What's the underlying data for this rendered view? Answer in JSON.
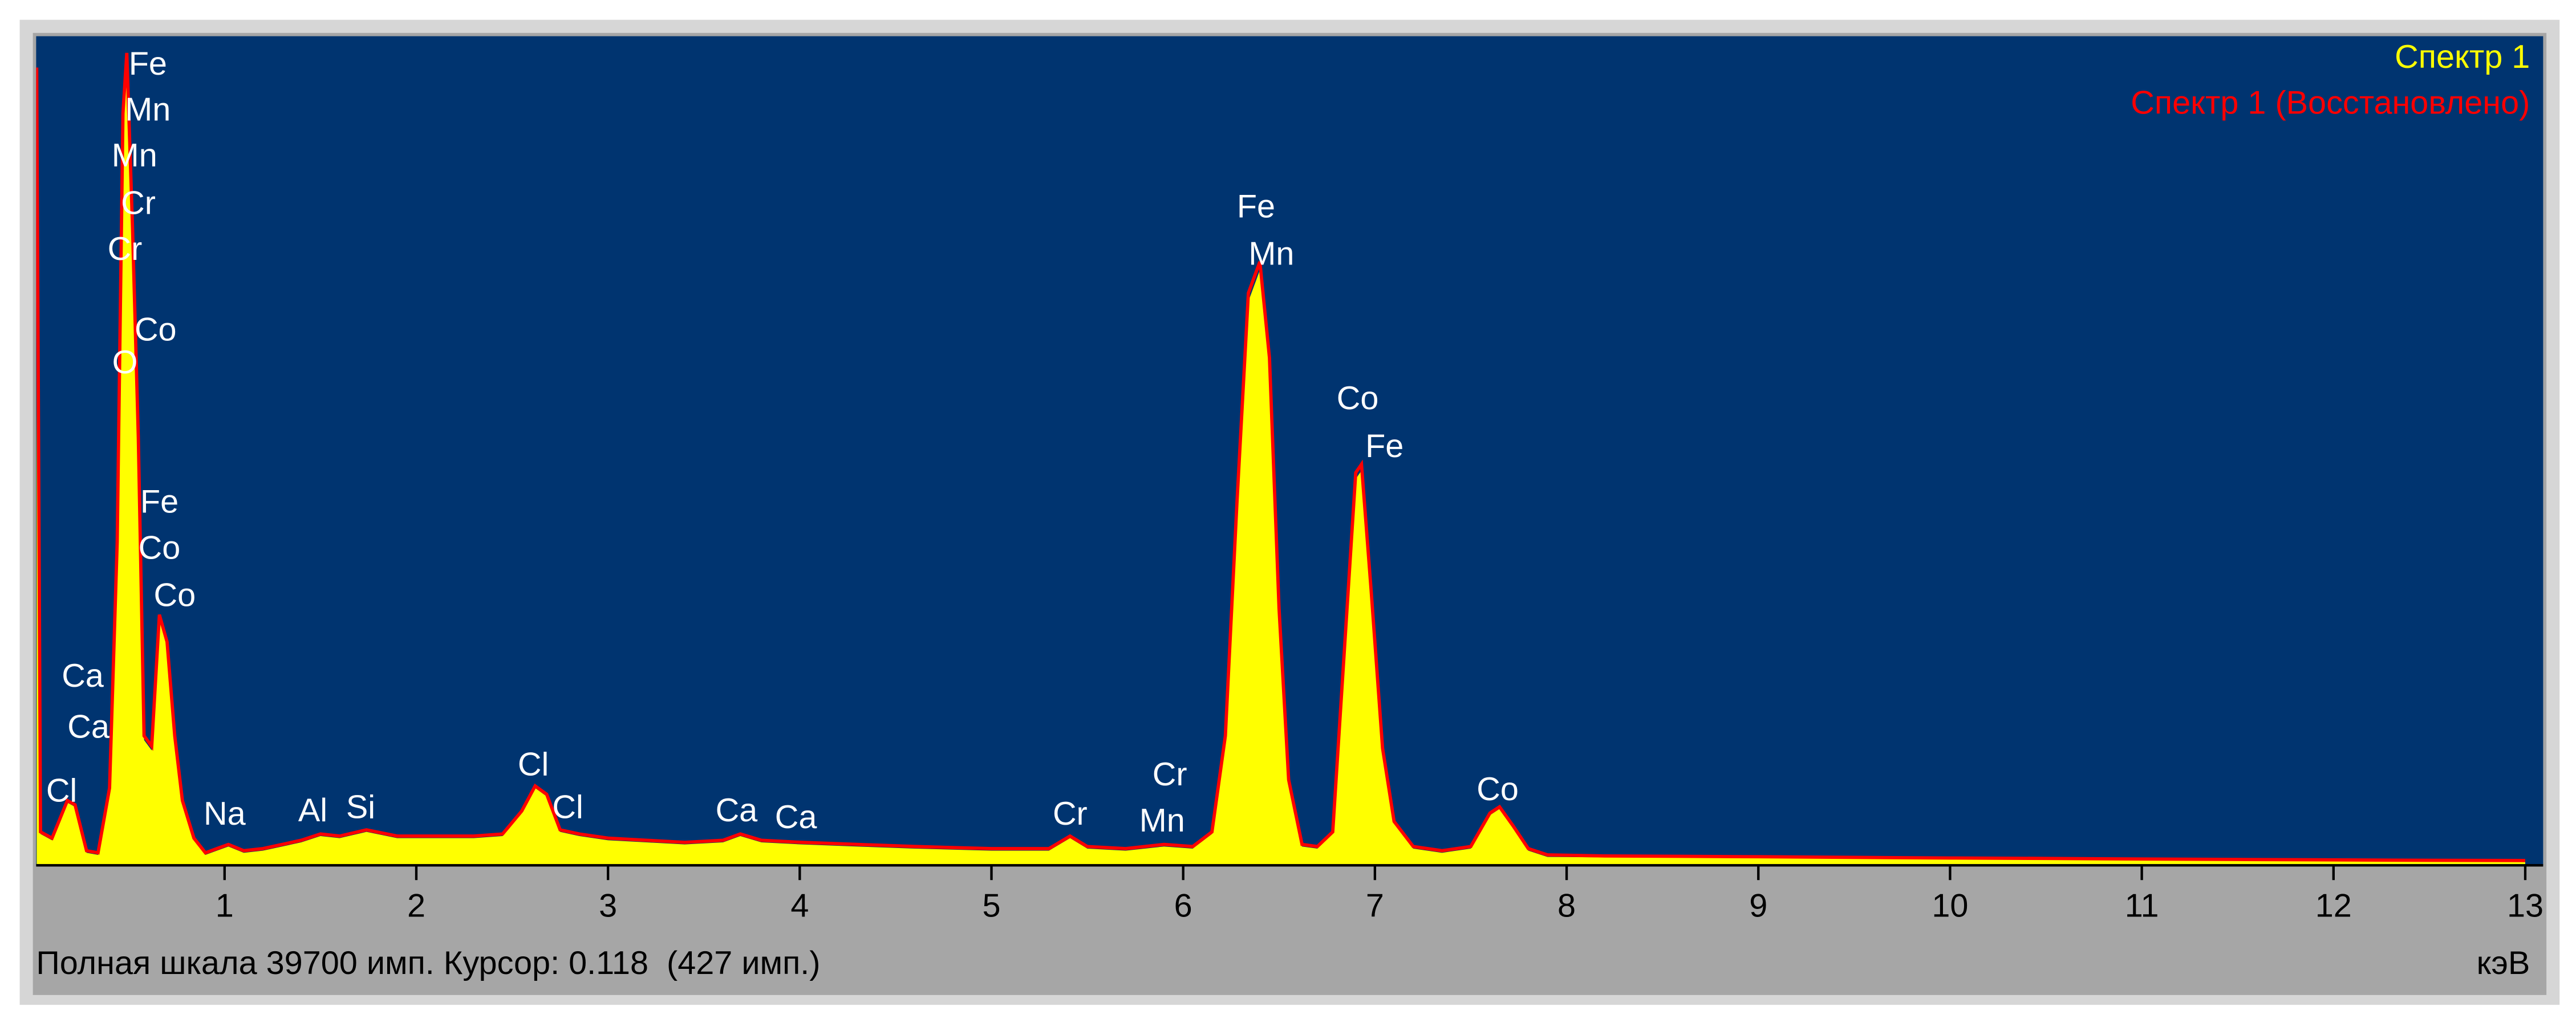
{
  "chart_data": {
    "type": "area",
    "x": [
      0.02,
      0.04,
      0.1,
      0.18,
      0.22,
      0.28,
      0.34,
      0.4,
      0.44,
      0.47,
      0.49,
      0.52,
      0.55,
      0.58,
      0.62,
      0.66,
      0.7,
      0.74,
      0.78,
      0.84,
      0.9,
      0.96,
      1.02,
      1.1,
      1.2,
      1.3,
      1.4,
      1.5,
      1.6,
      1.74,
      1.9,
      2.1,
      2.3,
      2.45,
      2.55,
      2.62,
      2.68,
      2.75,
      2.85,
      3.0,
      3.2,
      3.4,
      3.6,
      3.69,
      3.8,
      4.01,
      4.3,
      4.6,
      5.0,
      5.3,
      5.41,
      5.5,
      5.7,
      5.9,
      6.05,
      6.15,
      6.22,
      6.28,
      6.34,
      6.4,
      6.45,
      6.5,
      6.55,
      6.62,
      6.7,
      6.78,
      6.84,
      6.9,
      6.93,
      6.98,
      7.04,
      7.1,
      7.2,
      7.35,
      7.5,
      7.6,
      7.65,
      7.72,
      7.8,
      7.9,
      8.2,
      8.6,
      9.0,
      9.5,
      10.0,
      10.5,
      11.0,
      11.5,
      12.0,
      12.5,
      13.0
    ],
    "series": [
      {
        "name": "Спектр 1",
        "color": "#ffff00",
        "values": [
          38000,
          1500,
          1200,
          3000,
          2800,
          600,
          500,
          3500,
          15000,
          35000,
          38400,
          30000,
          20000,
          6000,
          5500,
          11700,
          10500,
          6000,
          3000,
          1200,
          500,
          700,
          900,
          600,
          700,
          900,
          1100,
          1400,
          1300,
          1600,
          1300,
          1300,
          1300,
          1400,
          2500,
          3700,
          3300,
          1600,
          1400,
          1200,
          1100,
          1000,
          1100,
          1400,
          1100,
          1000,
          900,
          800,
          700,
          700,
          1300,
          800,
          700,
          900,
          800,
          1500,
          6000,
          17000,
          27000,
          28500,
          24000,
          12000,
          4000,
          900,
          800,
          1500,
          10000,
          18500,
          18900,
          13000,
          5500,
          2000,
          800,
          600,
          800,
          2400,
          2700,
          1800,
          700,
          400,
          380,
          370,
          350,
          320,
          290,
          270,
          250,
          220,
          200,
          180,
          170
        ]
      },
      {
        "name": "Спектр 1 (Восстановлено)",
        "color": "#ff0000",
        "values": [
          38200,
          1600,
          1300,
          3100,
          2900,
          700,
          600,
          3700,
          15500,
          36000,
          38900,
          30500,
          20500,
          6200,
          5700,
          12000,
          10700,
          6200,
          3100,
          1300,
          600,
          800,
          1000,
          700,
          800,
          1000,
          1200,
          1500,
          1400,
          1700,
          1400,
          1400,
          1400,
          1500,
          2600,
          3800,
          3400,
          1700,
          1500,
          1300,
          1200,
          1100,
          1200,
          1500,
          1200,
          1100,
          1000,
          900,
          800,
          800,
          1400,
          900,
          800,
          1000,
          900,
          1600,
          6200,
          17300,
          27400,
          28900,
          24300,
          12300,
          4100,
          1000,
          900,
          1600,
          10200,
          18800,
          19200,
          13200,
          5600,
          2100,
          900,
          700,
          900,
          2500,
          2800,
          1900,
          800,
          500,
          450,
          430,
          410,
          380,
          350,
          330,
          300,
          280,
          260,
          240,
          230
        ]
      }
    ],
    "xlim": [
      0,
      13
    ],
    "ylim": [
      0,
      39700
    ],
    "xticks": [
      1,
      2,
      3,
      4,
      5,
      6,
      7,
      8,
      9,
      10,
      11,
      12,
      13
    ],
    "xlabel": "кэВ",
    "legend": "top-right",
    "footer": "Полная шкала 39700 имп. Курсор: 0.118  (427 имп.)",
    "annotations": [
      {
        "label": "Fe",
        "x": 0.6,
        "y": 38280
      },
      {
        "label": "Mn",
        "x": 0.6,
        "y": 36080
      },
      {
        "label": "Mn",
        "x": 0.53,
        "y": 33880
      },
      {
        "label": "Cr",
        "x": 0.55,
        "y": 31600
      },
      {
        "label": "Cr",
        "x": 0.48,
        "y": 29400
      },
      {
        "label": "Co",
        "x": 0.64,
        "y": 25550
      },
      {
        "label": "O",
        "x": 0.48,
        "y": 23980
      },
      {
        "label": "Fe",
        "x": 0.66,
        "y": 17300
      },
      {
        "label": "Co",
        "x": 0.66,
        "y": 15090
      },
      {
        "label": "Co",
        "x": 0.74,
        "y": 12820
      },
      {
        "label": "Ca",
        "x": 0.26,
        "y": 8960
      },
      {
        "label": "Ca",
        "x": 0.29,
        "y": 6520
      },
      {
        "label": "Cl",
        "x": 0.15,
        "y": 3460
      },
      {
        "label": "Na",
        "x": 1.0,
        "y": 2360
      },
      {
        "label": "Al",
        "x": 1.46,
        "y": 2520
      },
      {
        "label": "Si",
        "x": 1.71,
        "y": 2670
      },
      {
        "label": "Cl",
        "x": 2.61,
        "y": 4720
      },
      {
        "label": "Cl",
        "x": 2.79,
        "y": 2670
      },
      {
        "label": "Ca",
        "x": 3.67,
        "y": 2520
      },
      {
        "label": "Ca",
        "x": 3.98,
        "y": 2200
      },
      {
        "label": "Cr",
        "x": 5.41,
        "y": 2360
      },
      {
        "label": "Cr",
        "x": 5.93,
        "y": 4250
      },
      {
        "label": "Mn",
        "x": 5.89,
        "y": 2040
      },
      {
        "label": "Fe",
        "x": 6.38,
        "y": 31440
      },
      {
        "label": "Mn",
        "x": 6.46,
        "y": 29170
      },
      {
        "label": "Co",
        "x": 6.91,
        "y": 22250
      },
      {
        "label": "Fe",
        "x": 7.05,
        "y": 19960
      },
      {
        "label": "Co",
        "x": 7.64,
        "y": 3540
      }
    ]
  }
}
